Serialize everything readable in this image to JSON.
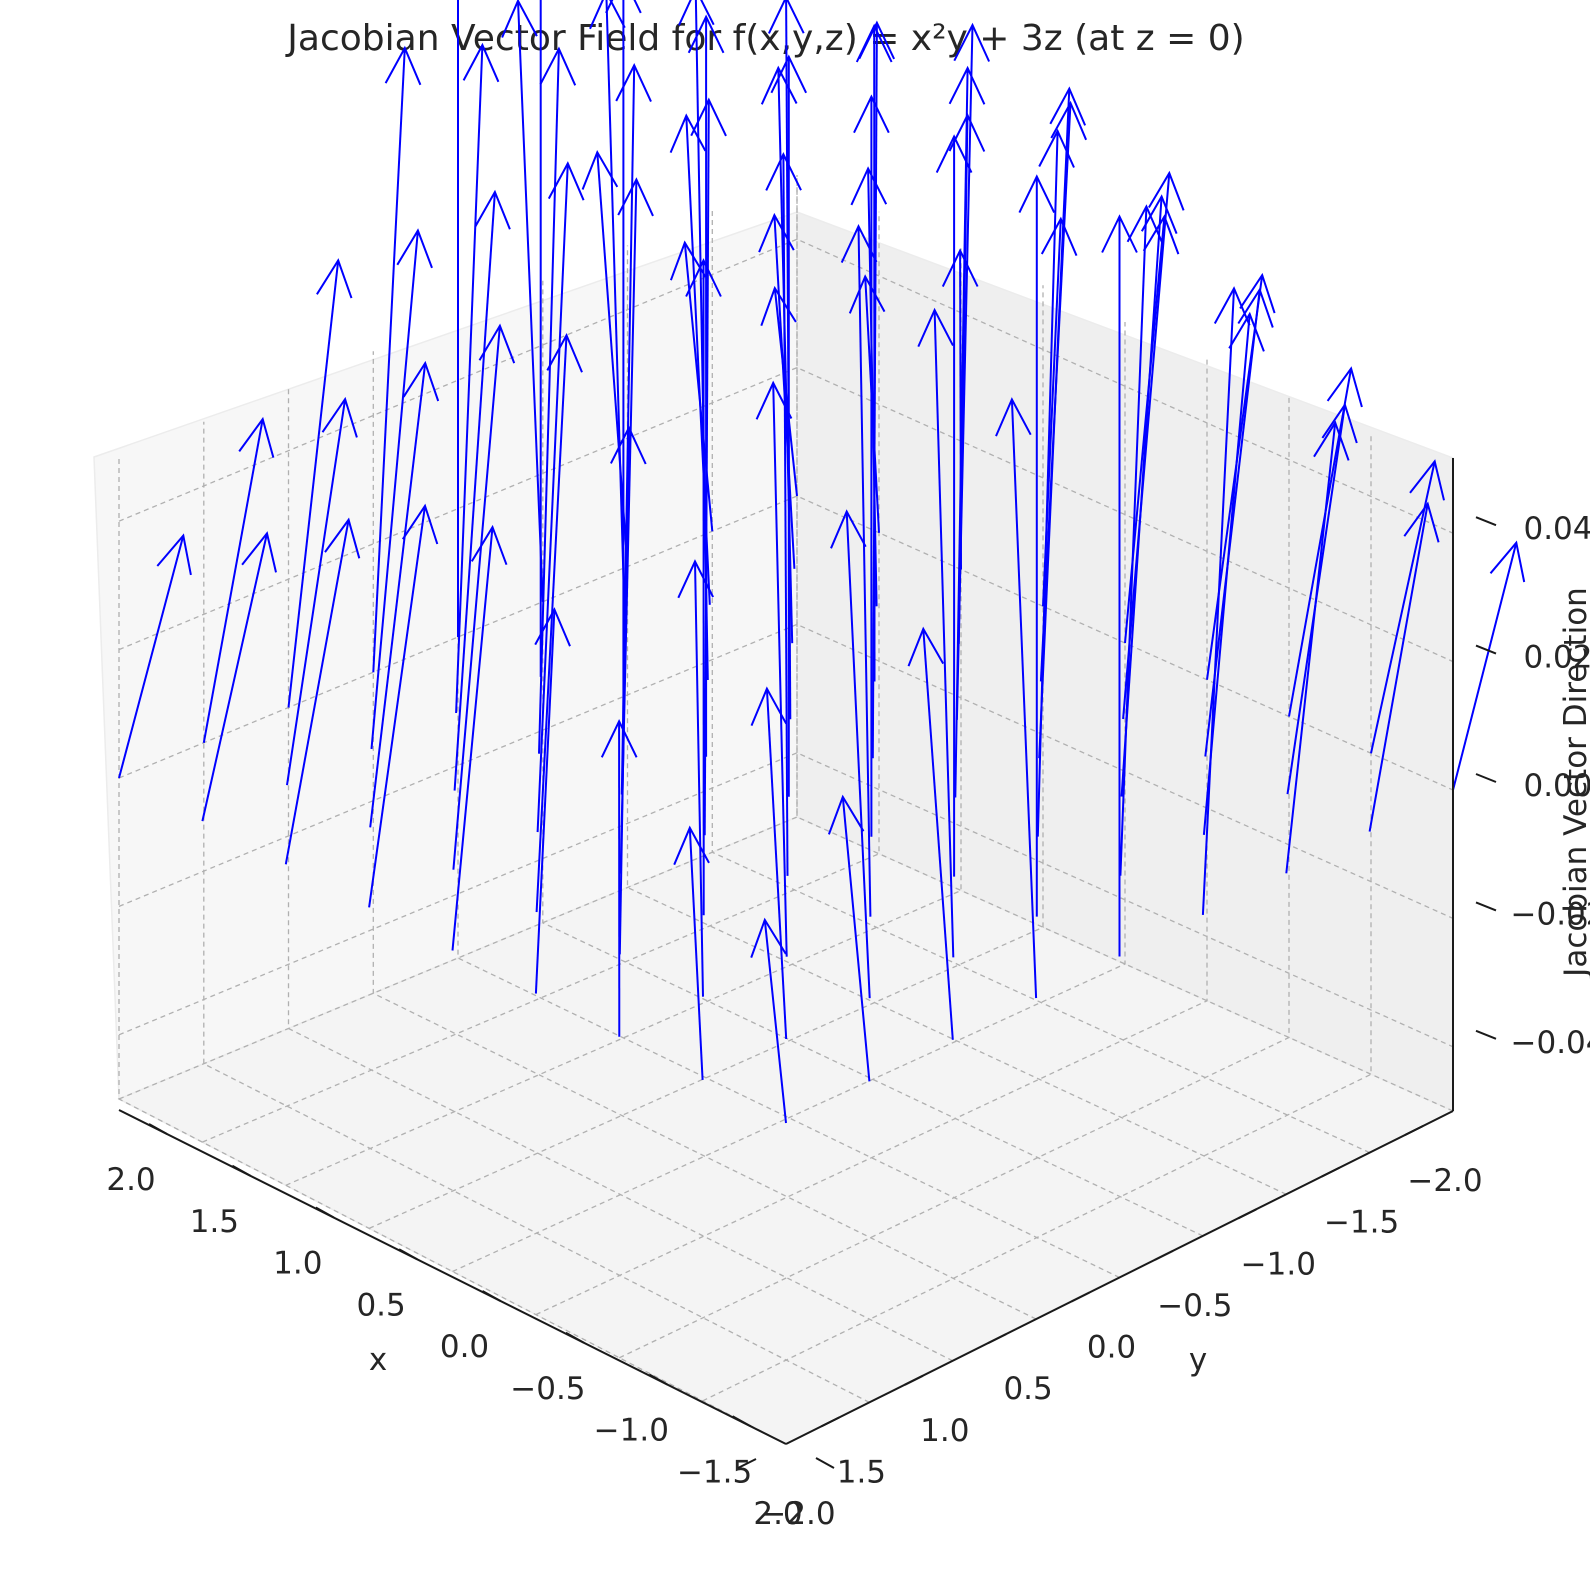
{
  "chart_data": {
    "type": "3d-quiver",
    "title": "Jacobian Vector Field for f(x,y,z) = x²y + 3z (at z = 0)",
    "xlabel": "x",
    "ylabel": "y",
    "zlabel": "Jacobian Vector Direction",
    "x_ticks": [
      "2.0",
      "1.5",
      "1.0",
      "0.5",
      "0.0",
      "−0.5",
      "−1.0",
      "−1.5",
      "−2.0"
    ],
    "y_ticks": [
      "−2.0",
      "−1.5",
      "−1.0",
      "−0.5",
      "0.0",
      "0.5",
      "1.0",
      "1.5",
      "2.0"
    ],
    "z_ticks": [
      "0.04",
      "0.02",
      "0.00",
      "−0.02",
      "−0.04"
    ],
    "xlim": [
      -2,
      2
    ],
    "ylim": [
      -2,
      2
    ],
    "zlim": [
      -0.05,
      0.05
    ],
    "grid_x": [
      -2,
      -1.5,
      -1,
      -0.5,
      0,
      0.5,
      1,
      1.5,
      2
    ],
    "grid_y": [
      -2,
      -1.5,
      -1,
      -0.5,
      0,
      0.5,
      1,
      1.5,
      2
    ],
    "z": 0,
    "vector_u": "2xy",
    "vector_v": "x²",
    "vector_w": "3",
    "color": "#0000ff",
    "grid": true
  }
}
